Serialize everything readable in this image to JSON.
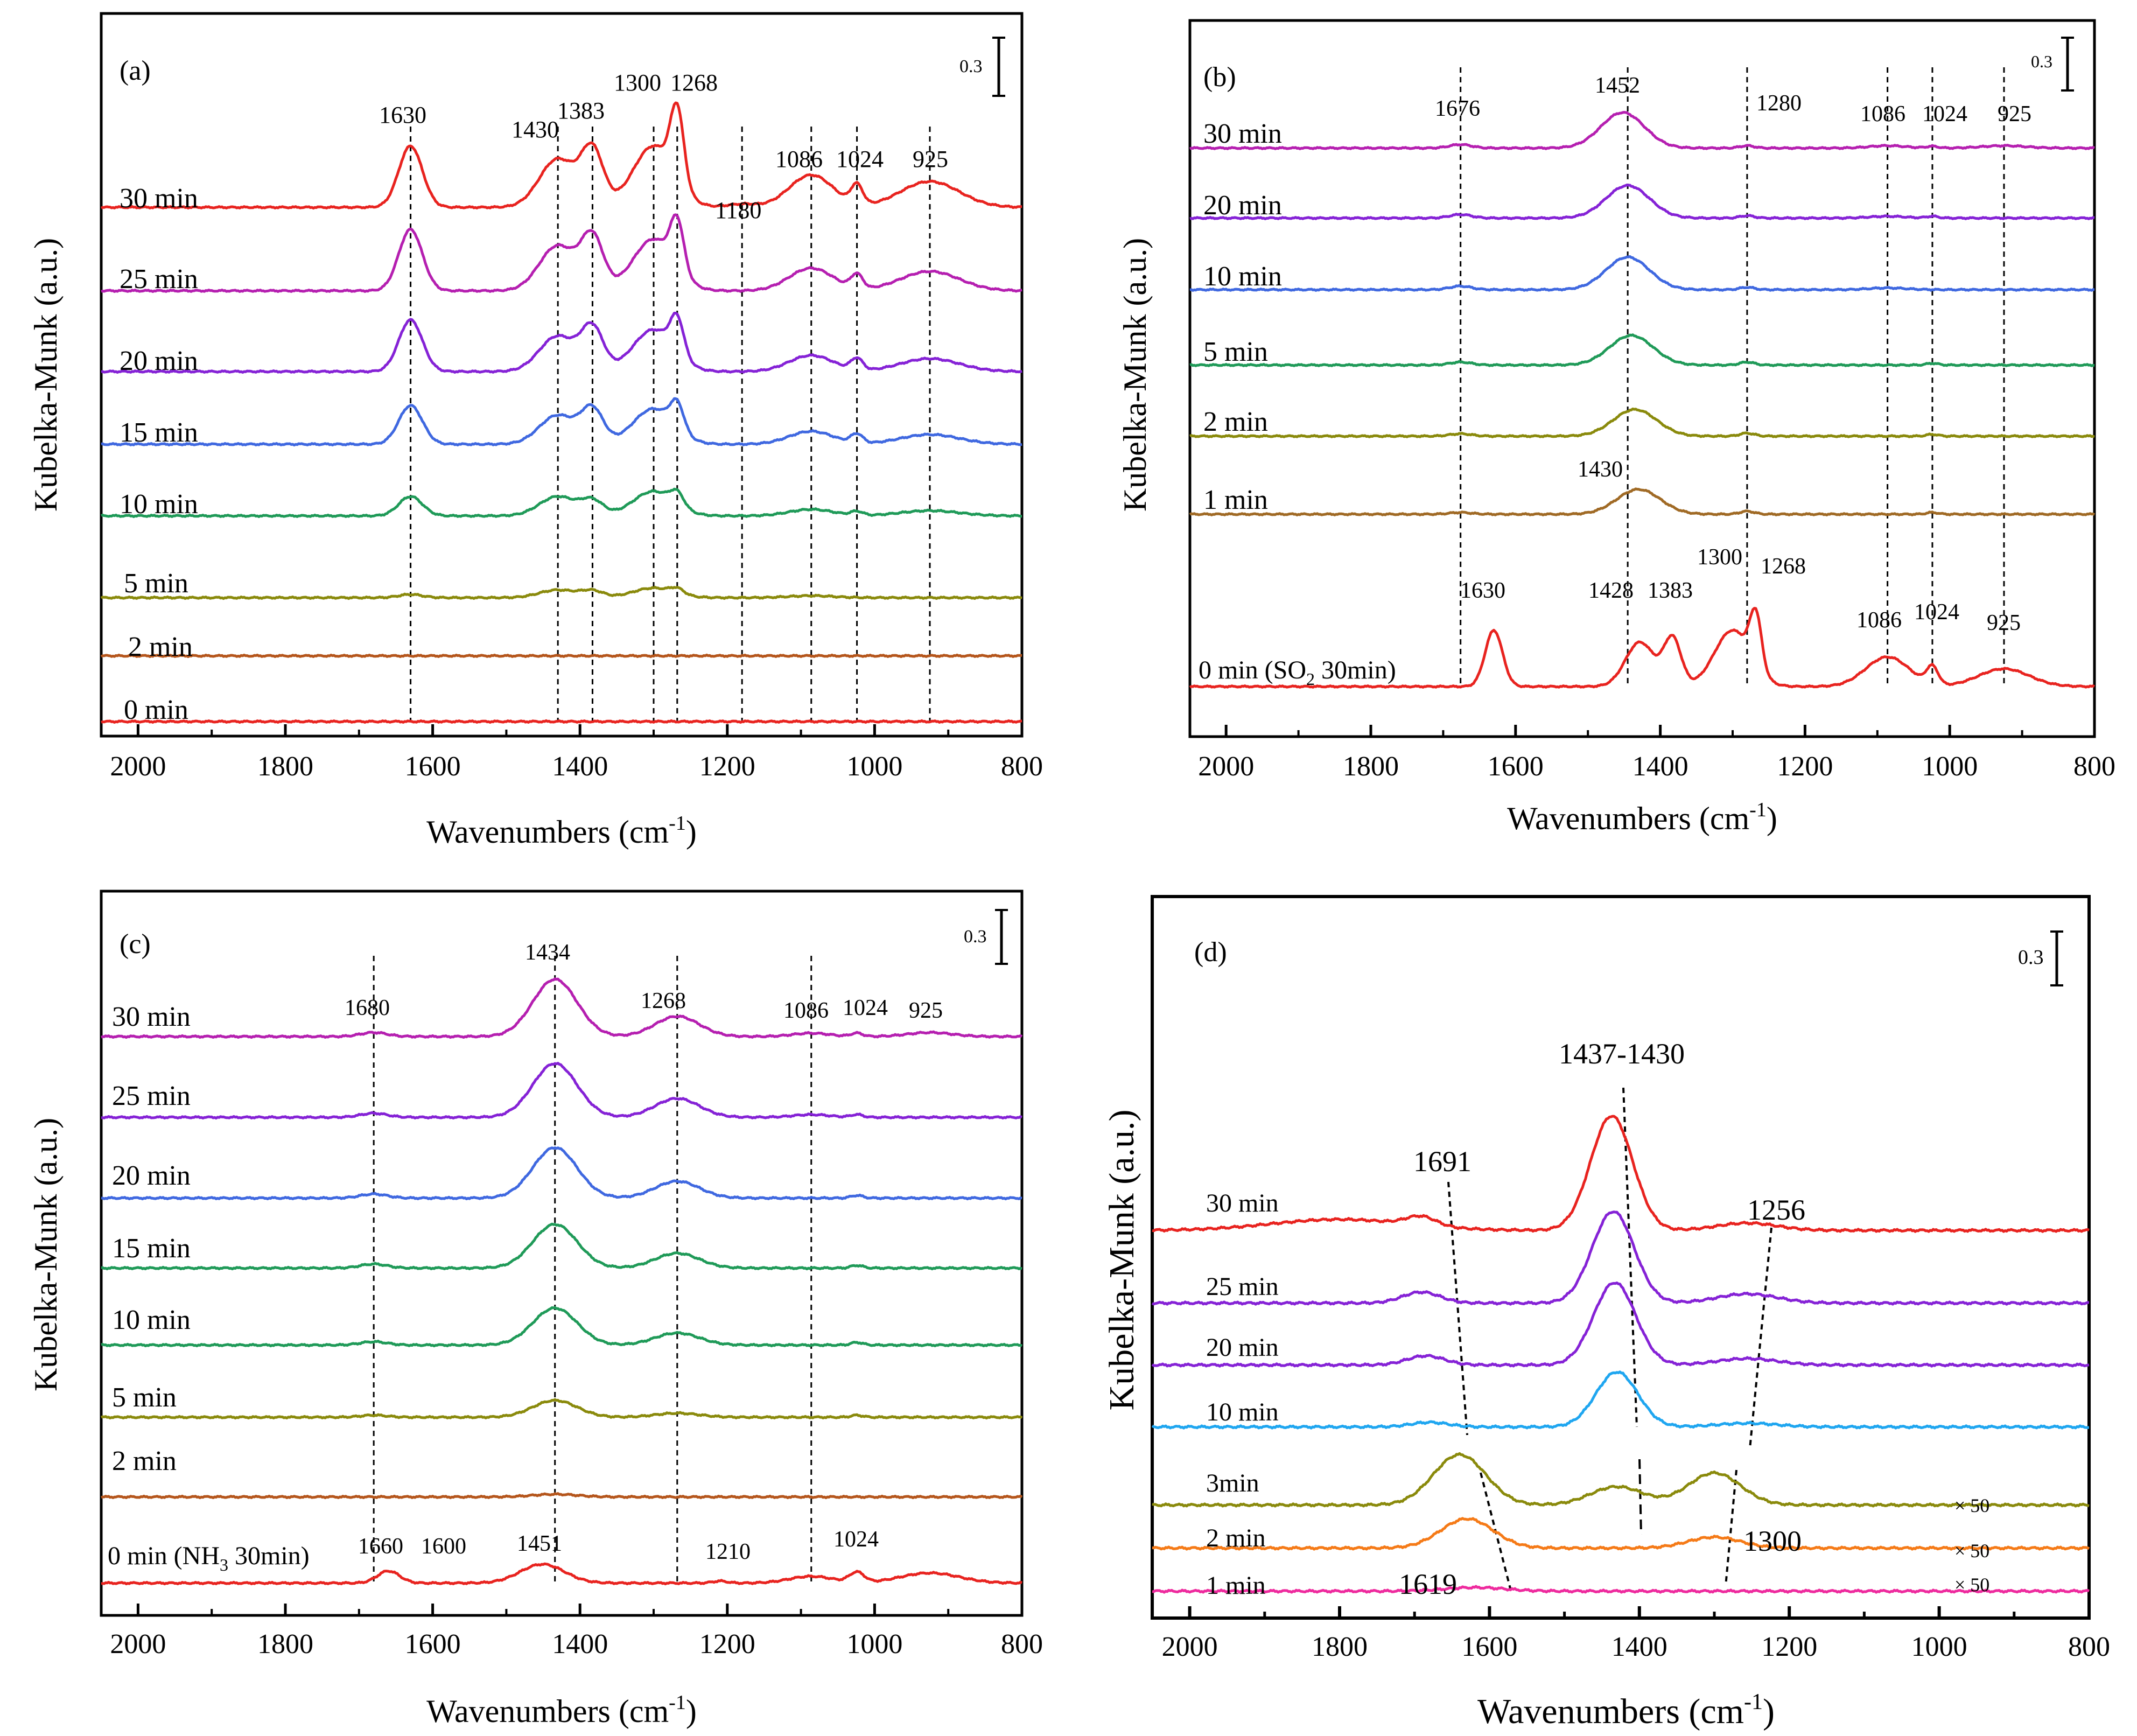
{
  "figure": {
    "x_unit_label": "Wavenumbers (cm",
    "x_unit_sup": "-1",
    "x_unit_close": ")",
    "y_label": "Kubelka-Munk (a.u.)"
  },
  "colors": {
    "red": "#e8231f",
    "magenta": "#b51fb0",
    "purple": "#8522d6",
    "blue": "#3f68e0",
    "green": "#1f9a58",
    "olive": "#8a8a0c",
    "brown": "#b5561c",
    "cyan": "#1fa6f0",
    "orange": "#f57a17",
    "pink": "#ee2b9e",
    "tan": "#a06a25"
  },
  "chart_data": [
    {
      "type": "line",
      "panel": "(a)",
      "xlabel": "Wavenumbers (cm-1)",
      "ylabel": "Kubelka-Munk (a.u.)",
      "xlim": [
        2050,
        800
      ],
      "x_ticks": [
        2000,
        1800,
        1600,
        1400,
        1200,
        1000,
        800
      ],
      "scale_bar_label": "0.3",
      "series": [
        {
          "name": "30 min",
          "color": "red",
          "peaks": [
            [
              1630,
              0.95,
              16
            ],
            [
              1430,
              0.75,
              25
            ],
            [
              1383,
              0.85,
              15
            ],
            [
              1300,
              0.95,
              28
            ],
            [
              1268,
              1.12,
              9
            ],
            [
              1180,
              0.05,
              20
            ],
            [
              1086,
              0.5,
              30
            ],
            [
              1024,
              0.3,
              8
            ],
            [
              925,
              0.4,
              40
            ]
          ]
        },
        {
          "name": "25 min",
          "color": "magenta",
          "peaks": [
            [
              1630,
              0.95,
              16
            ],
            [
              1430,
              0.7,
              25
            ],
            [
              1383,
              0.8,
              15
            ],
            [
              1300,
              0.8,
              28
            ],
            [
              1268,
              0.75,
              9
            ],
            [
              1086,
              0.35,
              30
            ],
            [
              1024,
              0.22,
              8
            ],
            [
              925,
              0.3,
              40
            ]
          ]
        },
        {
          "name": "20 min",
          "color": "purple",
          "peaks": [
            [
              1630,
              0.8,
              16
            ],
            [
              1430,
              0.55,
              25
            ],
            [
              1383,
              0.65,
              15
            ],
            [
              1300,
              0.65,
              28
            ],
            [
              1268,
              0.55,
              9
            ],
            [
              1086,
              0.25,
              30
            ],
            [
              1024,
              0.18,
              8
            ],
            [
              925,
              0.2,
              40
            ]
          ]
        },
        {
          "name": "15 min",
          "color": "blue",
          "peaks": [
            [
              1630,
              0.6,
              16
            ],
            [
              1430,
              0.45,
              25
            ],
            [
              1383,
              0.52,
              15
            ],
            [
              1300,
              0.55,
              28
            ],
            [
              1268,
              0.4,
              9
            ],
            [
              1086,
              0.2,
              30
            ],
            [
              1024,
              0.14,
              8
            ],
            [
              925,
              0.15,
              40
            ]
          ]
        },
        {
          "name": "10 min",
          "color": "green",
          "peaks": [
            [
              1630,
              0.3,
              16
            ],
            [
              1430,
              0.3,
              25
            ],
            [
              1383,
              0.22,
              15
            ],
            [
              1300,
              0.38,
              28
            ],
            [
              1268,
              0.2,
              9
            ],
            [
              1086,
              0.1,
              30
            ],
            [
              1024,
              0.06,
              8
            ],
            [
              925,
              0.08,
              40
            ]
          ]
        },
        {
          "name": "5 min",
          "color": "olive",
          "peaks": [
            [
              1630,
              0.05,
              16
            ],
            [
              1430,
              0.12,
              25
            ],
            [
              1383,
              0.1,
              15
            ],
            [
              1300,
              0.15,
              28
            ],
            [
              1268,
              0.08,
              9
            ],
            [
              1086,
              0.03,
              30
            ]
          ]
        },
        {
          "name": "2 min",
          "color": "brown",
          "peaks": []
        },
        {
          "name": "0 min",
          "color": "red",
          "peaks": []
        }
      ],
      "peak_labels": [
        "1630",
        "1430",
        "1383",
        "1300",
        "1268",
        "1180",
        "1086",
        "1024",
        "925"
      ],
      "guide_lines": [
        1630,
        1430,
        1383,
        1300,
        1268,
        1180,
        1086,
        1024,
        925
      ]
    },
    {
      "type": "line",
      "panel": "(b)",
      "xlabel": "Wavenumbers (cm-1)",
      "ylabel": "Kubelka-Munk (a.u.)",
      "xlim": [
        2050,
        800
      ],
      "x_ticks": [
        2000,
        1800,
        1600,
        1400,
        1200,
        1000,
        800
      ],
      "scale_bar_label": "0.3",
      "series": [
        {
          "name": "30 min",
          "color": "magenta",
          "peaks": [
            [
              1676,
              0.06,
              15
            ],
            [
              1452,
              0.6,
              30
            ],
            [
              1280,
              0.04,
              10
            ],
            [
              1086,
              0.04,
              25
            ],
            [
              1024,
              0.03,
              8
            ],
            [
              925,
              0.04,
              30
            ]
          ]
        },
        {
          "name": "20 min",
          "color": "purple",
          "peaks": [
            [
              1676,
              0.06,
              15
            ],
            [
              1445,
              0.55,
              30
            ],
            [
              1280,
              0.04,
              10
            ],
            [
              1086,
              0.03,
              25
            ],
            [
              1024,
              0.03,
              8
            ]
          ]
        },
        {
          "name": "10 min",
          "color": "blue",
          "peaks": [
            [
              1676,
              0.06,
              15
            ],
            [
              1445,
              0.55,
              30
            ],
            [
              1280,
              0.04,
              10
            ],
            [
              1086,
              0.03,
              25
            ]
          ]
        },
        {
          "name": "5 min",
          "color": "green",
          "peaks": [
            [
              1676,
              0.05,
              15
            ],
            [
              1440,
              0.5,
              30
            ],
            [
              1280,
              0.05,
              10
            ],
            [
              1024,
              0.03,
              8
            ]
          ]
        },
        {
          "name": "2 min",
          "color": "olive",
          "peaks": [
            [
              1676,
              0.04,
              15
            ],
            [
              1435,
              0.45,
              30
            ],
            [
              1280,
              0.05,
              10
            ],
            [
              1024,
              0.03,
              8
            ]
          ]
        },
        {
          "name": "1 min",
          "color": "tan",
          "peaks": [
            [
              1676,
              0.03,
              15
            ],
            [
              1430,
              0.42,
              30
            ],
            [
              1280,
              0.05,
              10
            ],
            [
              1024,
              0.03,
              8
            ]
          ]
        },
        {
          "name": "0 min (SO2 30min)",
          "name_main": "0 min (SO",
          "name_sub": "2",
          "name_end": " 30min)",
          "color": "red",
          "peaks": [
            [
              1630,
              0.95,
              12
            ],
            [
              1428,
              0.75,
              20
            ],
            [
              1383,
              0.8,
              12
            ],
            [
              1300,
              0.95,
              25
            ],
            [
              1268,
              0.9,
              8
            ],
            [
              1086,
              0.5,
              30
            ],
            [
              1024,
              0.3,
              8
            ],
            [
              925,
              0.3,
              35
            ]
          ]
        }
      ],
      "peak_labels": [
        "1676",
        "1452",
        "1280",
        "1086",
        "1024",
        "925",
        "1430",
        "1630",
        "1428",
        "1383",
        "1300",
        "1268",
        "1086",
        "1024",
        "925"
      ],
      "guide_lines": [
        1676,
        1445,
        1280,
        1086,
        1024,
        925
      ]
    },
    {
      "type": "line",
      "panel": "(c)",
      "xlabel": "Wavenumbers (cm-1)",
      "ylabel": "Kubelka-Munk (a.u.)",
      "xlim": [
        2050,
        800
      ],
      "x_ticks": [
        2000,
        1800,
        1600,
        1400,
        1200,
        1000,
        800
      ],
      "scale_bar_label": "0.3",
      "series": [
        {
          "name": "30 min",
          "color": "magenta",
          "peaks": [
            [
              1680,
              0.06,
              18
            ],
            [
              1434,
              0.85,
              30
            ],
            [
              1268,
              0.3,
              30
            ],
            [
              1086,
              0.05,
              25
            ],
            [
              1024,
              0.05,
              8
            ],
            [
              925,
              0.06,
              30
            ]
          ]
        },
        {
          "name": "25 min",
          "color": "purple",
          "peaks": [
            [
              1680,
              0.06,
              18
            ],
            [
              1434,
              0.8,
              30
            ],
            [
              1268,
              0.28,
              30
            ],
            [
              1086,
              0.04,
              25
            ],
            [
              1024,
              0.04,
              8
            ]
          ]
        },
        {
          "name": "20 min",
          "color": "blue",
          "peaks": [
            [
              1680,
              0.06,
              18
            ],
            [
              1434,
              0.75,
              30
            ],
            [
              1268,
              0.25,
              30
            ],
            [
              1024,
              0.04,
              8
            ]
          ]
        },
        {
          "name": "15 min",
          "color": "green",
          "peaks": [
            [
              1680,
              0.06,
              18
            ],
            [
              1434,
              0.65,
              30
            ],
            [
              1268,
              0.22,
              30
            ],
            [
              1024,
              0.04,
              8
            ]
          ]
        },
        {
          "name": "10 min",
          "color": "green",
          "peaks": [
            [
              1680,
              0.05,
              18
            ],
            [
              1434,
              0.55,
              30
            ],
            [
              1268,
              0.18,
              30
            ],
            [
              1024,
              0.04,
              8
            ]
          ]
        },
        {
          "name": "5 min",
          "color": "olive",
          "peaks": [
            [
              1680,
              0.03,
              18
            ],
            [
              1434,
              0.25,
              30
            ],
            [
              1268,
              0.06,
              30
            ],
            [
              1024,
              0.03,
              8
            ]
          ]
        },
        {
          "name": "2 min",
          "color": "brown",
          "peaks": [
            [
              1434,
              0.04,
              30
            ]
          ]
        },
        {
          "name": "0 min (NH3 30min)",
          "name_main": "0 min (NH",
          "name_sub": "3",
          "name_end": " 30min)",
          "color": "red",
          "peaks": [
            [
              1660,
              0.18,
              15
            ],
            [
              1451,
              0.28,
              30
            ],
            [
              1210,
              0.03,
              10
            ],
            [
              1086,
              0.1,
              30
            ],
            [
              1024,
              0.15,
              10
            ],
            [
              925,
              0.15,
              40
            ]
          ]
        }
      ],
      "peak_labels": [
        "1680",
        "1434",
        "1268",
        "1086",
        "1024",
        "925",
        "1660",
        "1600",
        "1451",
        "1210",
        "1024"
      ],
      "guide_lines": [
        1680,
        1434,
        1268,
        1086
      ]
    },
    {
      "type": "line",
      "panel": "(d)",
      "xlabel": "Wavenumbers (cm-1)",
      "ylabel": "Kubelka-Munk (a.u.)",
      "xlim": [
        2050,
        800
      ],
      "x_ticks": [
        2000,
        1800,
        1600,
        1400,
        1200,
        1000,
        800
      ],
      "scale_bar_label": "0.3",
      "series": [
        {
          "name": "30 min",
          "color": "red",
          "peaks": [
            [
              1800,
              0.12,
              90
            ],
            [
              1691,
              0.1,
              20
            ],
            [
              1437,
              1.25,
              28
            ],
            [
              1256,
              0.08,
              40
            ]
          ]
        },
        {
          "name": "25 min",
          "color": "purple",
          "peaks": [
            [
              1691,
              0.12,
              25
            ],
            [
              1435,
              1.0,
              28
            ],
            [
              1256,
              0.1,
              40
            ]
          ]
        },
        {
          "name": "20 min",
          "color": "purple",
          "peaks": [
            [
              1685,
              0.1,
              25
            ],
            [
              1433,
              0.9,
              28
            ],
            [
              1256,
              0.07,
              40
            ]
          ]
        },
        {
          "name": "10 min",
          "color": "cyan",
          "peaks": [
            [
              1680,
              0.05,
              25
            ],
            [
              1430,
              0.6,
              28
            ],
            [
              1256,
              0.04,
              40
            ]
          ]
        },
        {
          "name": "3min",
          "color": "olive",
          "peaks": [
            [
              1640,
              0.55,
              35
            ],
            [
              1430,
              0.2,
              35
            ],
            [
              1300,
              0.35,
              35
            ]
          ]
        },
        {
          "name": "2 min",
          "color": "orange",
          "peaks": [
            [
              1630,
              0.32,
              35
            ],
            [
              1300,
              0.12,
              35
            ]
          ]
        },
        {
          "name": "1 min",
          "color": "pink",
          "peaks": [
            [
              1619,
              0.04,
              40
            ]
          ]
        }
      ],
      "multipliers": [
        "× 50",
        "× 50",
        "× 50"
      ],
      "peak_labels": [
        "1437-1430",
        "1691",
        "1256",
        "1300",
        "1619"
      ]
    }
  ]
}
